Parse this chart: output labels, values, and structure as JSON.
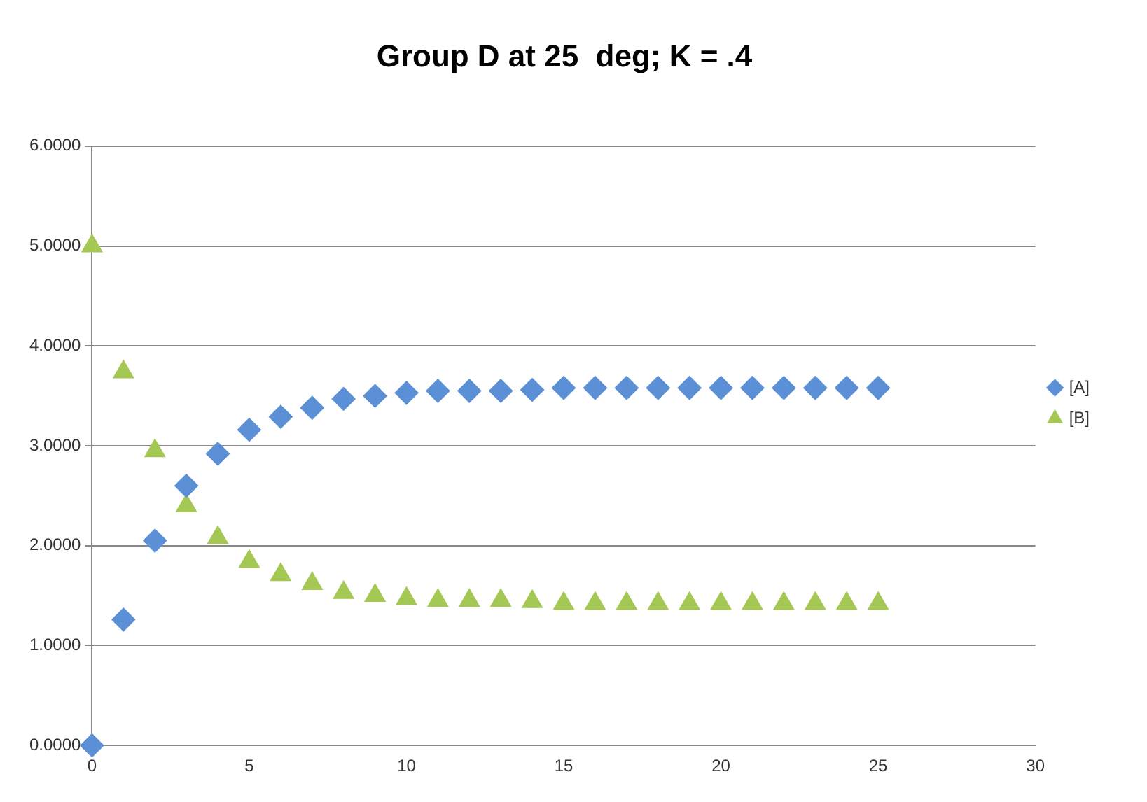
{
  "chart_data": {
    "type": "scatter",
    "title": "Group D at 25  deg; K = .4",
    "x": [
      0,
      1,
      2,
      3,
      4,
      5,
      6,
      7,
      8,
      9,
      10,
      11,
      12,
      13,
      14,
      15,
      16,
      17,
      18,
      19,
      20,
      21,
      22,
      23,
      24,
      25
    ],
    "series": [
      {
        "name": "[A]",
        "color": "#5b8fd6",
        "marker": "diamond",
        "values": [
          0,
          1.26,
          2.05,
          2.6,
          2.92,
          3.16,
          3.29,
          3.38,
          3.47,
          3.5,
          3.53,
          3.55,
          3.55,
          3.55,
          3.56,
          3.58,
          3.58,
          3.58,
          3.58,
          3.58,
          3.58,
          3.58,
          3.58,
          3.58,
          3.58,
          3.58
        ]
      },
      {
        "name": "[B]",
        "color": "#a4c853",
        "marker": "triangle",
        "values": [
          5,
          3.74,
          2.95,
          2.4,
          2.08,
          1.84,
          1.71,
          1.62,
          1.53,
          1.5,
          1.47,
          1.45,
          1.45,
          1.45,
          1.44,
          1.42,
          1.42,
          1.42,
          1.42,
          1.42,
          1.42,
          1.42,
          1.42,
          1.42,
          1.42,
          1.42
        ]
      }
    ],
    "xlim": [
      0,
      30
    ],
    "xticks": [
      0,
      5,
      10,
      15,
      20,
      25,
      30
    ],
    "ylim": [
      0,
      6
    ],
    "yticks": [
      {
        "value": 0,
        "label": "0.0000"
      },
      {
        "value": 1,
        "label": "1.0000"
      },
      {
        "value": 2,
        "label": "2.0000"
      },
      {
        "value": 3,
        "label": "3.0000"
      },
      {
        "value": 4,
        "label": "4.0000"
      },
      {
        "value": 5,
        "label": "5.0000"
      },
      {
        "value": 6,
        "label": "6.0000"
      }
    ],
    "grid": "y",
    "legend": "right"
  }
}
